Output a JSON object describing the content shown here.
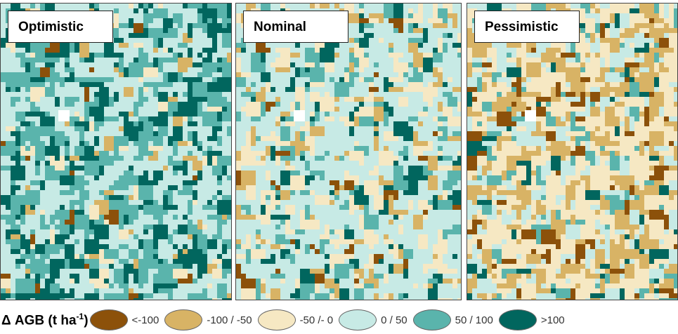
{
  "panels": [
    {
      "id": "optimistic",
      "label": "Optimistic",
      "weights": [
        0.02,
        0.03,
        0.04,
        0.38,
        0.3,
        0.23
      ]
    },
    {
      "id": "nominal",
      "label": "Nominal",
      "weights": [
        0.03,
        0.1,
        0.18,
        0.47,
        0.13,
        0.09
      ]
    },
    {
      "id": "pessimistic",
      "label": "Pessimistic",
      "weights": [
        0.07,
        0.28,
        0.38,
        0.14,
        0.09,
        0.04
      ]
    }
  ],
  "legend": {
    "title": "Δ AGB (t ha",
    "title_sup": "-1",
    "title_close": ")",
    "classes": [
      {
        "label": "<-100",
        "color": "#8c510a"
      },
      {
        "label": "-100 / -50",
        "color": "#d8b365"
      },
      {
        "label": "-50 /- 0",
        "color": "#f6e8c3"
      },
      {
        "label": "0 / 50",
        "color": "#c7eae5"
      },
      {
        "label": "50 / 100",
        "color": "#5ab4ac"
      },
      {
        "label": ">100",
        "color": "#01665e"
      }
    ]
  }
}
